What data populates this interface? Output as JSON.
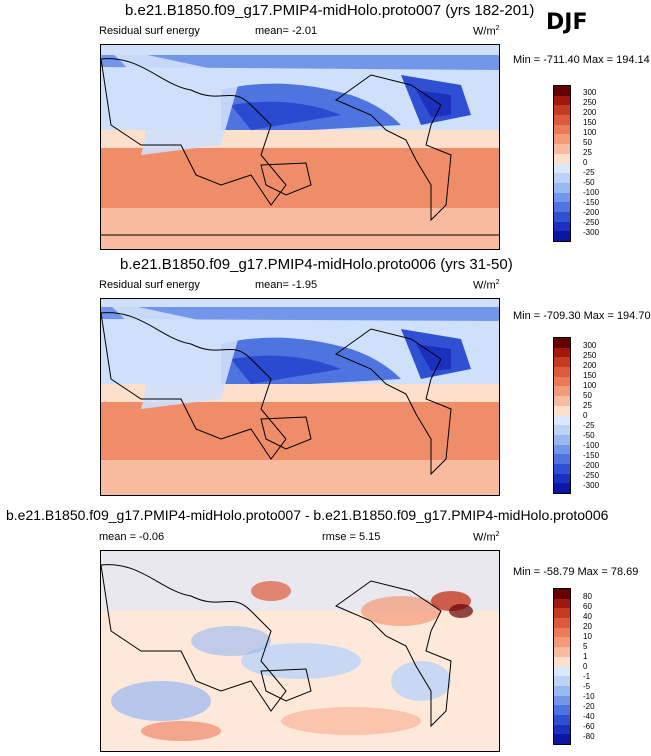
{
  "season_label": "DJF",
  "units_label": "W/m",
  "units_sup": "2",
  "panels": [
    {
      "title": "b.e21.B1850.f09_g17.PMIP4-midHolo.proto007 (yrs 182-201)",
      "variable": "Residual surf energy",
      "mean_label": "mean=  -2.01",
      "minmax": "Min = -711.40 Max = 194.14",
      "colorbar_ticks": [
        "300",
        "250",
        "200",
        "150",
        "100",
        "50",
        "25",
        "0",
        "-25",
        "-50",
        "-100",
        "-150",
        "-200",
        "-250",
        "-300"
      ],
      "colors": [
        "#650000",
        "#a1180f",
        "#c53a22",
        "#de5a3b",
        "#ec7a56",
        "#f49a78",
        "#f9bba0",
        "#fde0cc",
        "#dbe8fb",
        "#bcd3f7",
        "#98b8f2",
        "#7296ea",
        "#4e74e0",
        "#3050d3",
        "#1b30bf",
        "#0c16a4"
      ]
    },
    {
      "title": "b.e21.B1850.f09_g17.PMIP4-midHolo.proto006 (yrs 31-50)",
      "variable": "Residual surf energy",
      "mean_label": "mean=  -1.95",
      "minmax": "Min = -709.30 Max = 194.70",
      "colorbar_ticks": [
        "300",
        "250",
        "200",
        "150",
        "100",
        "50",
        "25",
        "0",
        "-25",
        "-50",
        "-100",
        "-150",
        "-200",
        "-250",
        "-300"
      ],
      "colors": [
        "#650000",
        "#a1180f",
        "#c53a22",
        "#de5a3b",
        "#ec7a56",
        "#f49a78",
        "#f9bba0",
        "#fde0cc",
        "#dbe8fb",
        "#bcd3f7",
        "#98b8f2",
        "#7296ea",
        "#4e74e0",
        "#3050d3",
        "#1b30bf",
        "#0c16a4"
      ]
    },
    {
      "title": "b.e21.B1850.f09_g17.PMIP4-midHolo.proto007 - b.e21.B1850.f09_g17.PMIP4-midHolo.proto006",
      "mean_label": "mean =  -0.06",
      "rmse_label": "rmse =  5.15",
      "minmax": "Min = -58.79 Max =  78.69",
      "colorbar_ticks": [
        "80",
        "60",
        "40",
        "20",
        "10",
        "5",
        "1",
        "0",
        "-1",
        "-5",
        "-10",
        "-20",
        "-40",
        "-60",
        "-80"
      ],
      "colors": [
        "#650000",
        "#a1180f",
        "#c53a22",
        "#de5a3b",
        "#ec7a56",
        "#f49a78",
        "#f9bba0",
        "#fde0cc",
        "#dbe8fb",
        "#bcd3f7",
        "#98b8f2",
        "#7296ea",
        "#4e74e0",
        "#3050d3",
        "#1b30bf",
        "#0c16a4"
      ]
    }
  ],
  "chart_data": [
    {
      "type": "heatmap",
      "title": "b.e21.B1850.f09_g17.PMIP4-midHolo.proto007 (yrs 182-201)",
      "variable": "Residual surf energy",
      "units": "W/m2",
      "mean": -2.01,
      "min": -711.4,
      "max": 194.14,
      "levels": [
        -300,
        -250,
        -200,
        -150,
        -100,
        -50,
        -25,
        0,
        25,
        50,
        100,
        150,
        200,
        250,
        300
      ]
    },
    {
      "type": "heatmap",
      "title": "b.e21.B1850.f09_g17.PMIP4-midHolo.proto006 (yrs 31-50)",
      "variable": "Residual surf energy",
      "units": "W/m2",
      "mean": -1.95,
      "min": -709.3,
      "max": 194.7,
      "levels": [
        -300,
        -250,
        -200,
        -150,
        -100,
        -50,
        -25,
        0,
        25,
        50,
        100,
        150,
        200,
        250,
        300
      ]
    },
    {
      "type": "heatmap",
      "title": "b.e21.B1850.f09_g17.PMIP4-midHolo.proto007 - b.e21.B1850.f09_g17.PMIP4-midHolo.proto006",
      "units": "W/m2",
      "mean": -0.06,
      "rmse": 5.15,
      "min": -58.79,
      "max": 78.69,
      "levels": [
        -80,
        -60,
        -40,
        -20,
        -10,
        -5,
        -1,
        0,
        1,
        5,
        10,
        20,
        40,
        60,
        80
      ]
    }
  ]
}
